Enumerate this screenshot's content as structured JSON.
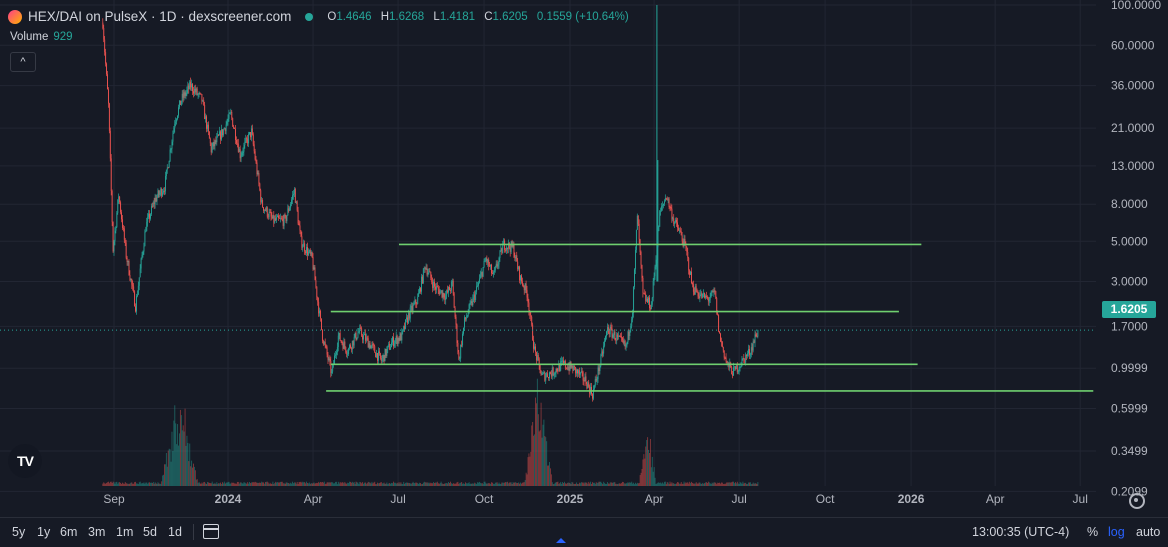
{
  "header": {
    "symbol_title": "HEX/DAI on PulseX · 1D · dexscreener.com",
    "ohlc": [
      {
        "key": "O",
        "value": "1.4646"
      },
      {
        "key": "H",
        "value": "1.6268"
      },
      {
        "key": "L",
        "value": "1.4181"
      },
      {
        "key": "C",
        "value": "1.6205"
      }
    ],
    "change": "0.1559 (+10.64%)",
    "volume_label": "Volume",
    "volume_value": "929",
    "collapse_label": "^"
  },
  "logo_text": "TV",
  "colors": {
    "background": "#161a25",
    "up": "#26a69a",
    "down": "#ef5350",
    "level_line": "#6fcf6f",
    "grid": "#222633",
    "axis_text": "#b2b5be"
  },
  "price_tag": "1.6205",
  "toolbar": {
    "ranges": [
      "5y",
      "1y",
      "6m",
      "3m",
      "1m",
      "5d",
      "1d"
    ],
    "time": "13:00:35 (UTC-4)",
    "percent": "%",
    "log": "log",
    "auto": "auto"
  },
  "icons": [
    "calendar-range-icon",
    "gear-icon",
    "tradingview-logo-icon"
  ],
  "chart_data": {
    "type": "candlestick",
    "scale": "log",
    "y_ticks": [
      "100.0000",
      "60.0000",
      "36.0000",
      "21.0000",
      "13.0000",
      "8.0000",
      "5.0000",
      "3.0000",
      "1.7000",
      "0.9999",
      "0.5999",
      "0.3499",
      "0.2099"
    ],
    "x_ticks": [
      "Sep",
      "2024",
      "Apr",
      "Jul",
      "Oct",
      "2025",
      "Apr",
      "Jul",
      "Oct",
      "2026",
      "Apr",
      "Jul"
    ],
    "bold_x_ticks": [
      "2024",
      "2025",
      "2026"
    ],
    "price_path": [
      {
        "date": "2023-08-20",
        "price": 80
      },
      {
        "date": "2023-08-26",
        "price": 28
      },
      {
        "date": "2023-08-31",
        "price": 4.5
      },
      {
        "date": "2023-09-06",
        "price": 9
      },
      {
        "date": "2023-09-14",
        "price": 4.2
      },
      {
        "date": "2023-09-24",
        "price": 2.2
      },
      {
        "date": "2023-10-05",
        "price": 6
      },
      {
        "date": "2023-10-15",
        "price": 8.5
      },
      {
        "date": "2023-10-25",
        "price": 10
      },
      {
        "date": "2023-11-05",
        "price": 23
      },
      {
        "date": "2023-11-12",
        "price": 30
      },
      {
        "date": "2023-11-22",
        "price": 36
      },
      {
        "date": "2023-12-04",
        "price": 30
      },
      {
        "date": "2023-12-14",
        "price": 16
      },
      {
        "date": "2023-12-26",
        "price": 20
      },
      {
        "date": "2024-01-04",
        "price": 25
      },
      {
        "date": "2024-01-14",
        "price": 15
      },
      {
        "date": "2024-01-26",
        "price": 20
      },
      {
        "date": "2024-02-06",
        "price": 8
      },
      {
        "date": "2024-02-18",
        "price": 6.5
      },
      {
        "date": "2024-03-02",
        "price": 6.5
      },
      {
        "date": "2024-03-12",
        "price": 9.5
      },
      {
        "date": "2024-03-19",
        "price": 5
      },
      {
        "date": "2024-03-31",
        "price": 4
      },
      {
        "date": "2024-04-11",
        "price": 1.5
      },
      {
        "date": "2024-04-21",
        "price": 0.93
      },
      {
        "date": "2024-04-28",
        "price": 1.5
      },
      {
        "date": "2024-05-08",
        "price": 1.25
      },
      {
        "date": "2024-05-20",
        "price": 1.6
      },
      {
        "date": "2024-06-01",
        "price": 1.35
      },
      {
        "date": "2024-06-13",
        "price": 1.1
      },
      {
        "date": "2024-06-25",
        "price": 1.4
      },
      {
        "date": "2024-07-05",
        "price": 1.5
      },
      {
        "date": "2024-07-12",
        "price": 1.95
      },
      {
        "date": "2024-07-22",
        "price": 2.4
      },
      {
        "date": "2024-07-30",
        "price": 3.7
      },
      {
        "date": "2024-08-09",
        "price": 2.8
      },
      {
        "date": "2024-08-21",
        "price": 2.5
      },
      {
        "date": "2024-08-28",
        "price": 2.9
      },
      {
        "date": "2024-09-04",
        "price": 1.1
      },
      {
        "date": "2024-09-10",
        "price": 1.8
      },
      {
        "date": "2024-09-22",
        "price": 2.6
      },
      {
        "date": "2024-10-03",
        "price": 4
      },
      {
        "date": "2024-10-11",
        "price": 3.2
      },
      {
        "date": "2024-10-22",
        "price": 4.8
      },
      {
        "date": "2024-11-01",
        "price": 4.6
      },
      {
        "date": "2024-11-09",
        "price": 3.1
      },
      {
        "date": "2024-11-16",
        "price": 2.6
      },
      {
        "date": "2024-11-24",
        "price": 1.25
      },
      {
        "date": "2024-12-02",
        "price": 0.9
      },
      {
        "date": "2024-12-13",
        "price": 0.95
      },
      {
        "date": "2024-12-24",
        "price": 1.05
      },
      {
        "date": "2025-01-04",
        "price": 1
      },
      {
        "date": "2025-01-18",
        "price": 0.85
      },
      {
        "date": "2025-01-25",
        "price": 0.72
      },
      {
        "date": "2025-02-03",
        "price": 1.1
      },
      {
        "date": "2025-02-10",
        "price": 1.65
      },
      {
        "date": "2025-02-21",
        "price": 1.45
      },
      {
        "date": "2025-03-02",
        "price": 1.3
      },
      {
        "date": "2025-03-09",
        "price": 2.1
      },
      {
        "date": "2025-03-14",
        "price": 7
      },
      {
        "date": "2025-03-20",
        "price": 2.5
      },
      {
        "date": "2025-03-29",
        "price": 2.2
      },
      {
        "date": "2025-04-07",
        "price": 7
      },
      {
        "date": "2025-04-14",
        "price": 9
      },
      {
        "date": "2025-04-22",
        "price": 6.5
      },
      {
        "date": "2025-04-29",
        "price": 5.5
      },
      {
        "date": "2025-05-05",
        "price": 4.5
      },
      {
        "date": "2025-05-12",
        "price": 2.8
      },
      {
        "date": "2025-05-21",
        "price": 2.5
      },
      {
        "date": "2025-05-29",
        "price": 2.4
      },
      {
        "date": "2025-06-05",
        "price": 2.6
      },
      {
        "date": "2025-06-10",
        "price": 1.5
      },
      {
        "date": "2025-06-18",
        "price": 1.05
      },
      {
        "date": "2025-06-25",
        "price": 0.95
      },
      {
        "date": "2025-07-05",
        "price": 1.1
      },
      {
        "date": "2025-07-13",
        "price": 1.25
      },
      {
        "date": "2025-07-21",
        "price": 1.6205
      }
    ],
    "spikes": [
      {
        "date": "2025-04-04",
        "high": 100
      },
      {
        "date": "2025-04-05",
        "high": 14
      }
    ],
    "levels": [
      {
        "price": 4.8,
        "from": "2024-07-02",
        "to": "2026-01-12"
      },
      {
        "price": 2.05,
        "from": "2024-04-20",
        "to": "2025-12-19"
      },
      {
        "price": 1.05,
        "from": "2024-04-20",
        "to": "2026-01-08"
      },
      {
        "price": 0.75,
        "from": "2024-04-15",
        "to": "2026-07-15"
      }
    ],
    "volume_bursts": [
      {
        "date": "2023-11-10",
        "width_days": 40,
        "peak_relative": 0.85
      },
      {
        "date": "2024-11-28",
        "width_days": 30,
        "peak_relative": 0.9
      },
      {
        "date": "2025-03-25",
        "width_days": 18,
        "peak_relative": 0.55
      }
    ]
  }
}
